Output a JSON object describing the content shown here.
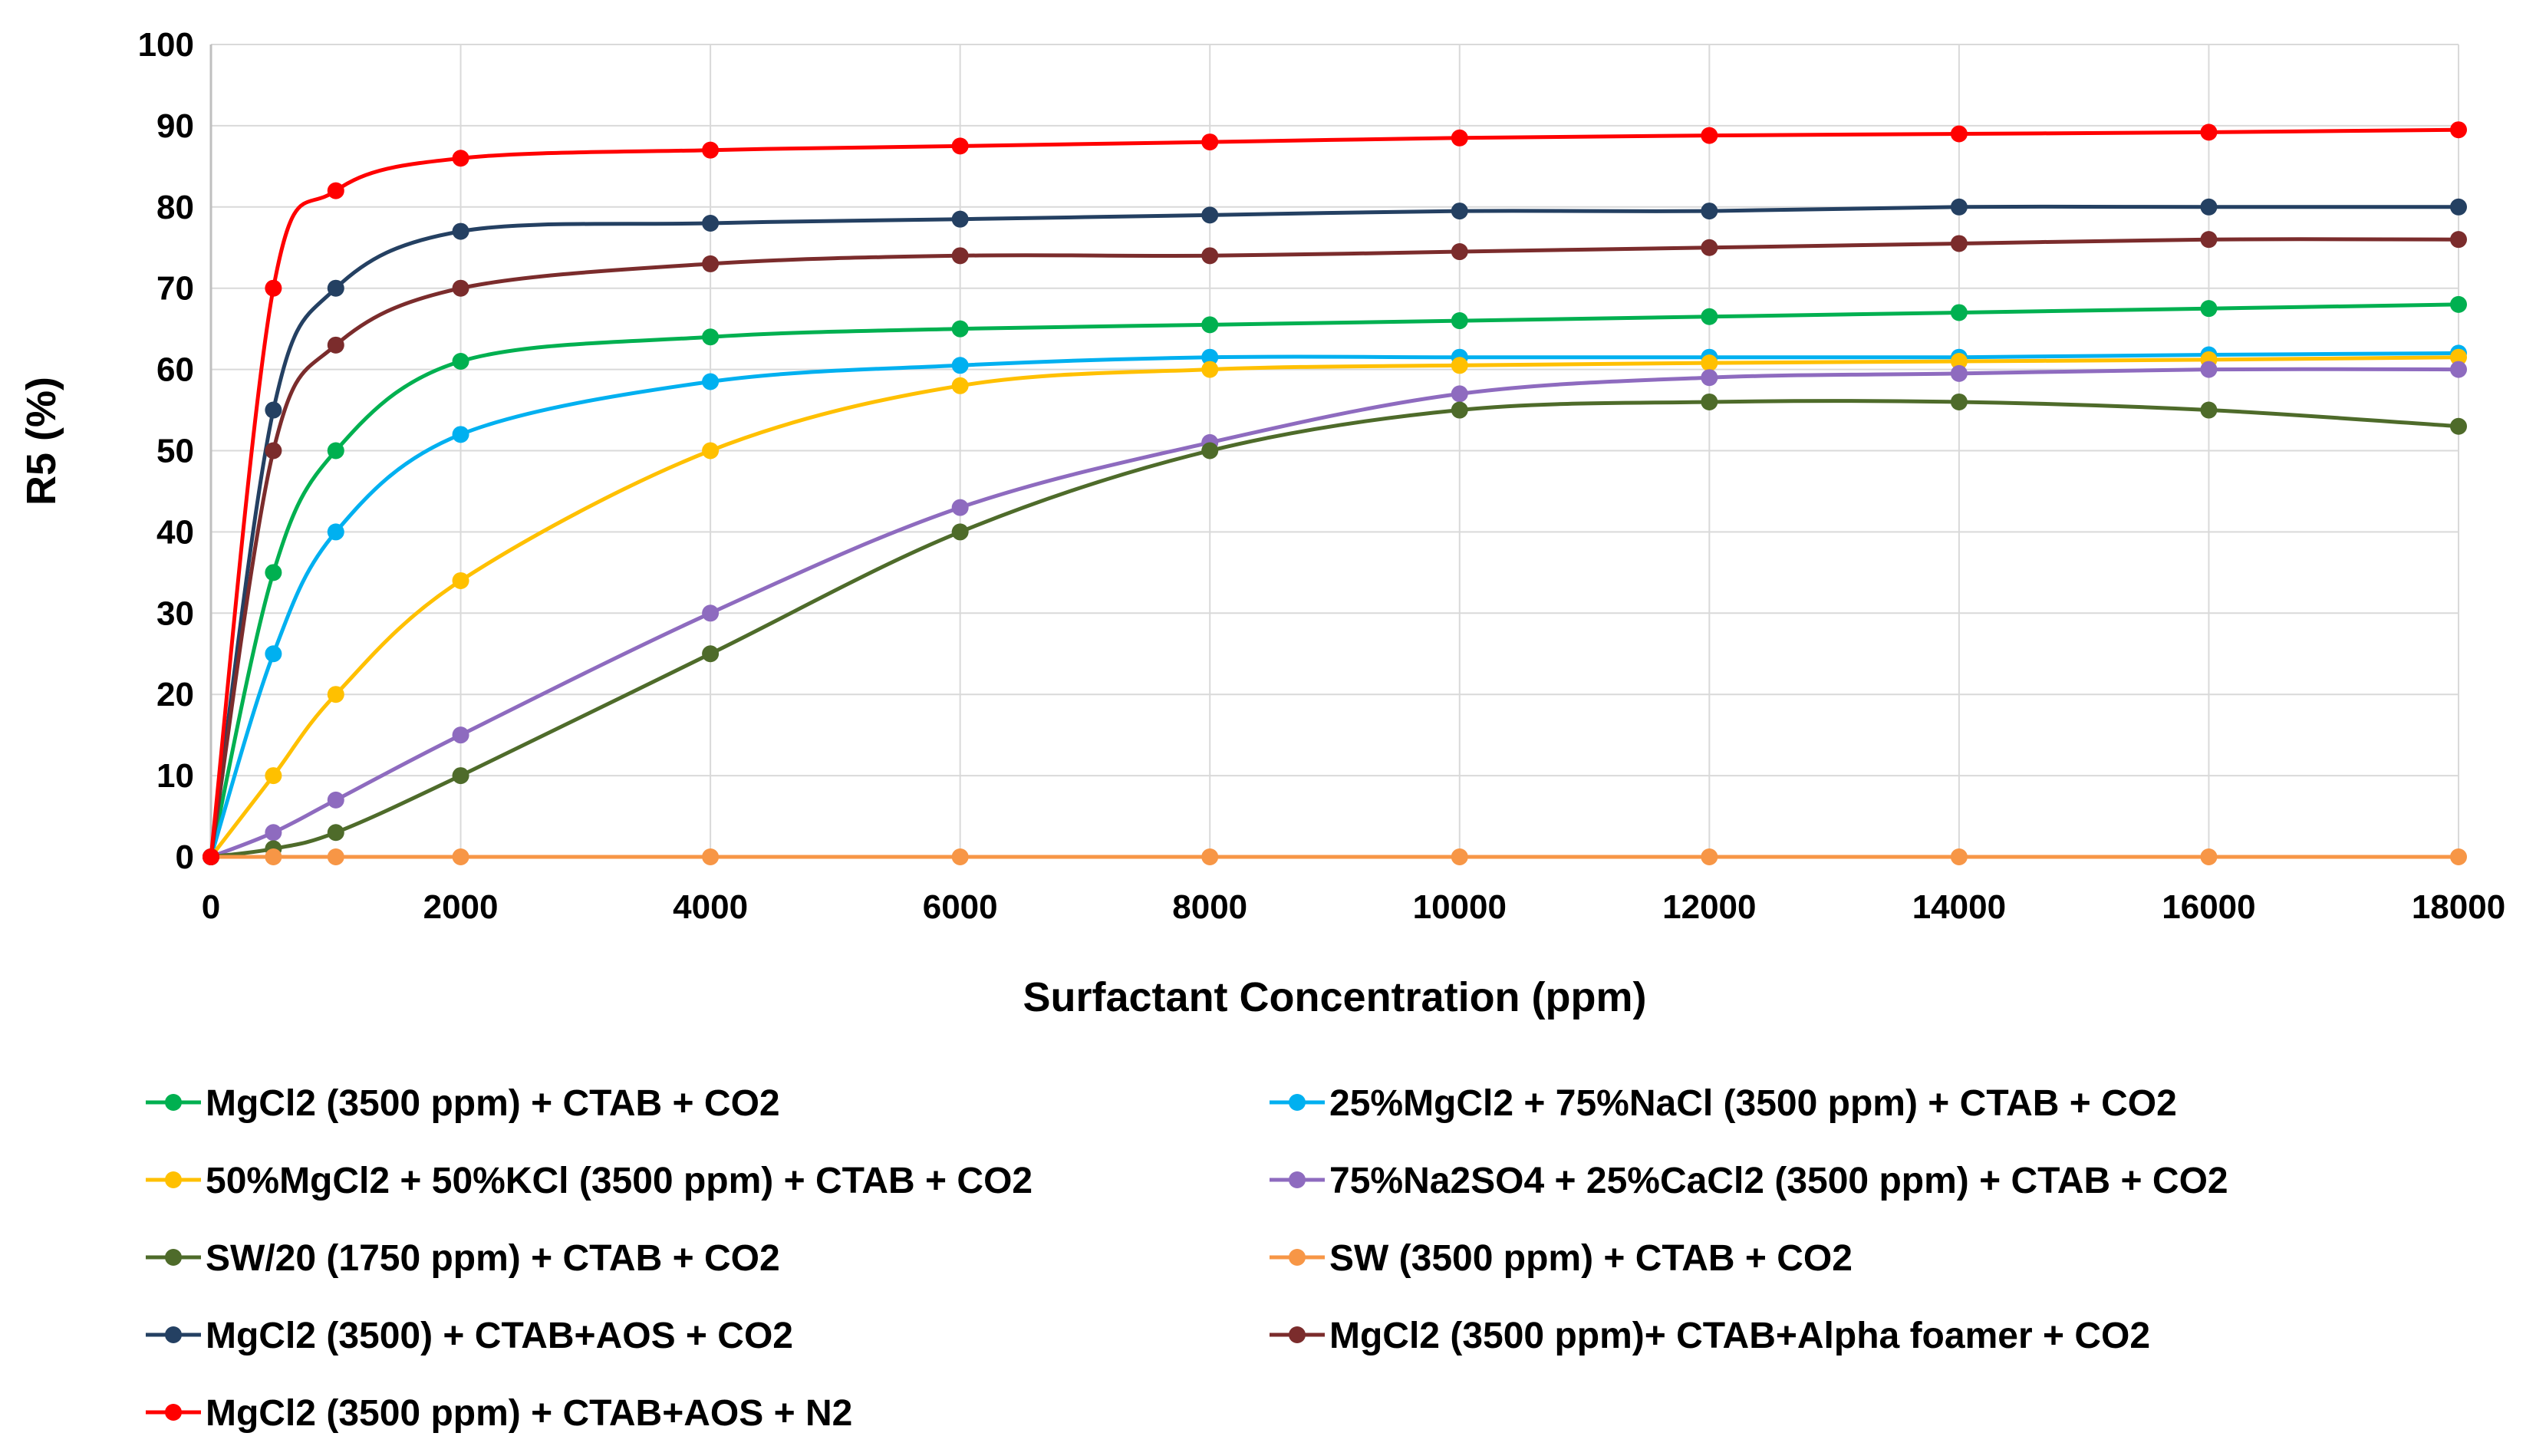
{
  "chart_data": {
    "type": "line",
    "title": "",
    "xlabel": "Surfactant Concentration (ppm)",
    "ylabel": "R5 (%)",
    "xlim": [
      0,
      18000
    ],
    "ylim": [
      0,
      100
    ],
    "x_ticks": [
      0,
      2000,
      4000,
      6000,
      8000,
      10000,
      12000,
      14000,
      16000,
      18000
    ],
    "y_ticks": [
      0,
      10,
      20,
      30,
      40,
      50,
      60,
      70,
      80,
      90,
      100
    ],
    "grid": true,
    "legend_position": "bottom",
    "x": [
      0,
      500,
      1000,
      2000,
      4000,
      6000,
      8000,
      10000,
      12000,
      14000,
      16000,
      18000
    ],
    "series": [
      {
        "name": "MgCl2 (3500 ppm) + CTAB + CO2",
        "color": "#00b050",
        "values": [
          0,
          35,
          50,
          61,
          64,
          65,
          65.5,
          66,
          66.5,
          67,
          67.5,
          68
        ]
      },
      {
        "name": "25%MgCl2 + 75%NaCl (3500 ppm) + CTAB + CO2",
        "color": "#00b0f0",
        "values": [
          0,
          25,
          40,
          52,
          58.5,
          60.5,
          61.5,
          61.5,
          61.5,
          61.5,
          61.8,
          62
        ]
      },
      {
        "name": "50%MgCl2 + 50%KCl (3500 ppm) + CTAB + CO2",
        "color": "#ffc000",
        "values": [
          0,
          10,
          20,
          34,
          50,
          58,
          60,
          60.5,
          60.8,
          61,
          61.2,
          61.5
        ]
      },
      {
        "name": "75%Na2SO4 + 25%CaCl2 (3500 ppm) + CTAB + CO2",
        "color": "#8e6bbf",
        "values": [
          0,
          3,
          7,
          15,
          30,
          43,
          51,
          57,
          59,
          59.5,
          60,
          60
        ]
      },
      {
        "name": "SW/20 (1750 ppm) + CTAB + CO2",
        "color": "#4e6b2a",
        "values": [
          0,
          1,
          3,
          10,
          25,
          40,
          50,
          55,
          56,
          56,
          55,
          53
        ]
      },
      {
        "name": "SW (3500 ppm) + CTAB + CO2",
        "color": "#f79646",
        "values": [
          0,
          0,
          0,
          0,
          0,
          0,
          0,
          0,
          0,
          0,
          0,
          0
        ]
      },
      {
        "name": "MgCl2 (3500) + CTAB+AOS + CO2",
        "color": "#244062",
        "values": [
          0,
          55,
          70,
          77,
          78,
          78.5,
          79,
          79.5,
          79.5,
          80,
          80,
          80
        ]
      },
      {
        "name": "MgCl2 (3500 ppm)+ CTAB+Alpha foamer + CO2",
        "color": "#7b2c2c",
        "values": [
          0,
          50,
          63,
          70,
          73,
          74,
          74,
          74.5,
          75,
          75.5,
          76,
          76
        ]
      },
      {
        "name": "MgCl2 (3500 ppm) + CTAB+AOS + N2",
        "color": "#ff0000",
        "values": [
          0,
          70,
          82,
          86,
          87,
          87.5,
          88,
          88.5,
          88.8,
          89,
          89.2,
          89.5
        ]
      }
    ]
  }
}
